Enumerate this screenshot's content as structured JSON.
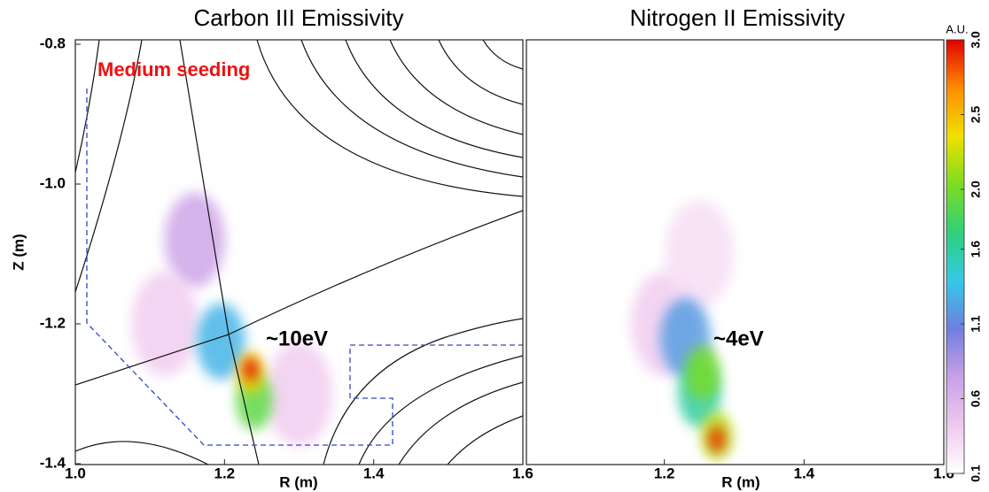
{
  "chart_data": [
    {
      "type": "heatmap",
      "title": "Carbon III Emissivity",
      "xlabel": "R (m)",
      "ylabel": "Z (m)",
      "xlim": [
        1.0,
        1.6
      ],
      "ylim": [
        -1.4,
        -0.8
      ],
      "xticks": [
        {
          "value": 1.0,
          "label": "1.0"
        },
        1.2,
        1.4,
        1.6
      ],
      "yticks": [
        -0.8,
        {
          "value": -1.0,
          "label": "-1.0"
        },
        -1.2,
        -1.4
      ],
      "annotations": [
        "Medium seeding",
        "~10eV"
      ],
      "x": [
        1.16,
        1.12,
        1.3,
        1.195,
        1.24,
        1.235,
        1.235
      ],
      "y": [
        -1.08,
        -1.2,
        -1.3,
        -1.225,
        -1.31,
        -1.27,
        -1.265
      ],
      "values": [
        0.7,
        0.4,
        0.4,
        1.3,
        1.9,
        2.4,
        3.0
      ]
    },
    {
      "type": "heatmap",
      "title": "Nitrogen II Emissivity",
      "xlabel": "R (m)",
      "xlim": [
        1.0,
        1.6
      ],
      "ylim": [
        -1.4,
        -0.8
      ],
      "xticks": [
        1.2,
        1.4,
        1.6
      ],
      "annotations": [
        "~4eV"
      ],
      "x": [
        1.2,
        1.25,
        1.23,
        1.25,
        1.255,
        1.275,
        1.275
      ],
      "y": [
        -1.2,
        -1.1,
        -1.22,
        -1.3,
        -1.27,
        -1.36,
        -1.365
      ],
      "values": [
        0.4,
        0.3,
        1.2,
        1.6,
        2.0,
        2.2,
        2.9
      ]
    }
  ],
  "colorbar": {
    "label": "A.U.",
    "clim": [
      0.1,
      3.0
    ],
    "cticks": [
      {
        "value": 3.0,
        "label": "3.0"
      },
      2.5,
      {
        "value": 2.0,
        "label": "2.0"
      },
      1.6,
      1.1,
      0.6,
      0.1
    ],
    "colormap": [
      "#ffffff",
      "#f0c8ef",
      "#c9a0e6",
      "#6f7fe0",
      "#35c8e8",
      "#2fd07a",
      "#7ddc20",
      "#f0e000",
      "#ff8c00",
      "#e00000"
    ]
  }
}
